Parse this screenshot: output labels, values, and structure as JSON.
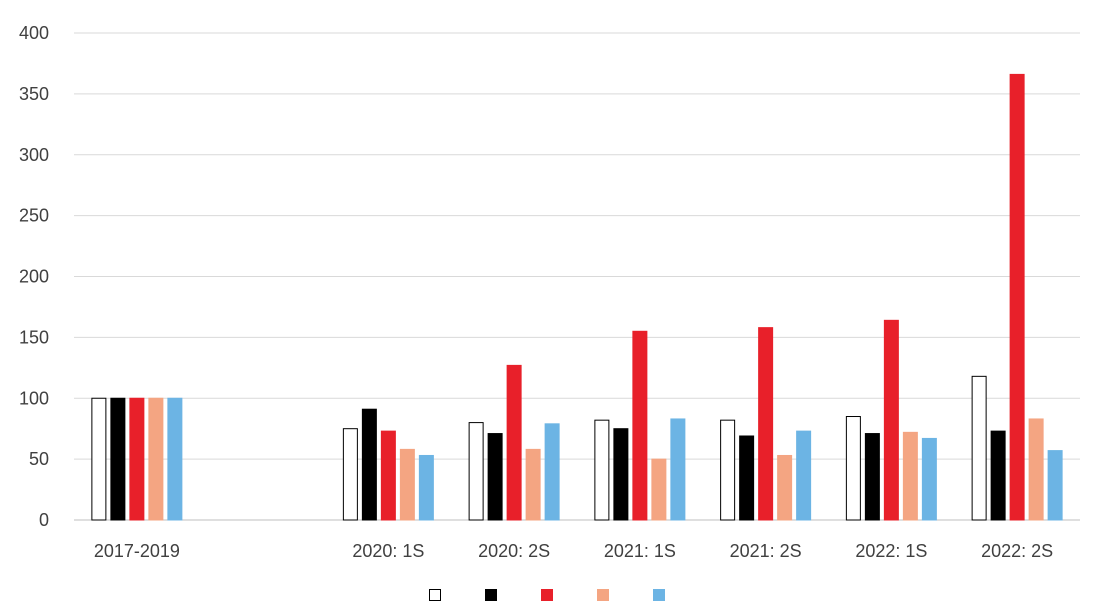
{
  "chart_data": {
    "type": "bar",
    "categories": [
      "2017-2019",
      "",
      "2020: 1S",
      "2020: 2S",
      "2021: 1S",
      "2021: 2S",
      "2022: 1S",
      "2022: 2S"
    ],
    "ylim": [
      0,
      400
    ],
    "yticks": [
      0,
      50,
      100,
      150,
      200,
      250,
      300,
      350,
      400
    ],
    "grid": true,
    "legend_position": "bottom",
    "series": [
      {
        "name": "",
        "values": [
          100,
          null,
          75,
          80,
          82,
          82,
          85,
          118
        ],
        "color": "#ffffff",
        "stroke": "#000000"
      },
      {
        "name": "",
        "values": [
          100,
          null,
          91,
          71,
          75,
          69,
          71,
          73
        ],
        "color": "#000000",
        "stroke": "#000000"
      },
      {
        "name": "",
        "values": [
          100,
          null,
          73,
          127,
          155,
          158,
          164,
          366
        ],
        "color": "#e8202a",
        "stroke": "#e8202a"
      },
      {
        "name": "",
        "values": [
          100,
          null,
          58,
          58,
          50,
          53,
          72,
          83
        ],
        "color": "#f4a582",
        "stroke": "#f4a582"
      },
      {
        "name": "",
        "values": [
          100,
          null,
          53,
          79,
          83,
          73,
          67,
          57
        ],
        "color": "#6cb4e4",
        "stroke": "#6cb4e4"
      }
    ]
  }
}
